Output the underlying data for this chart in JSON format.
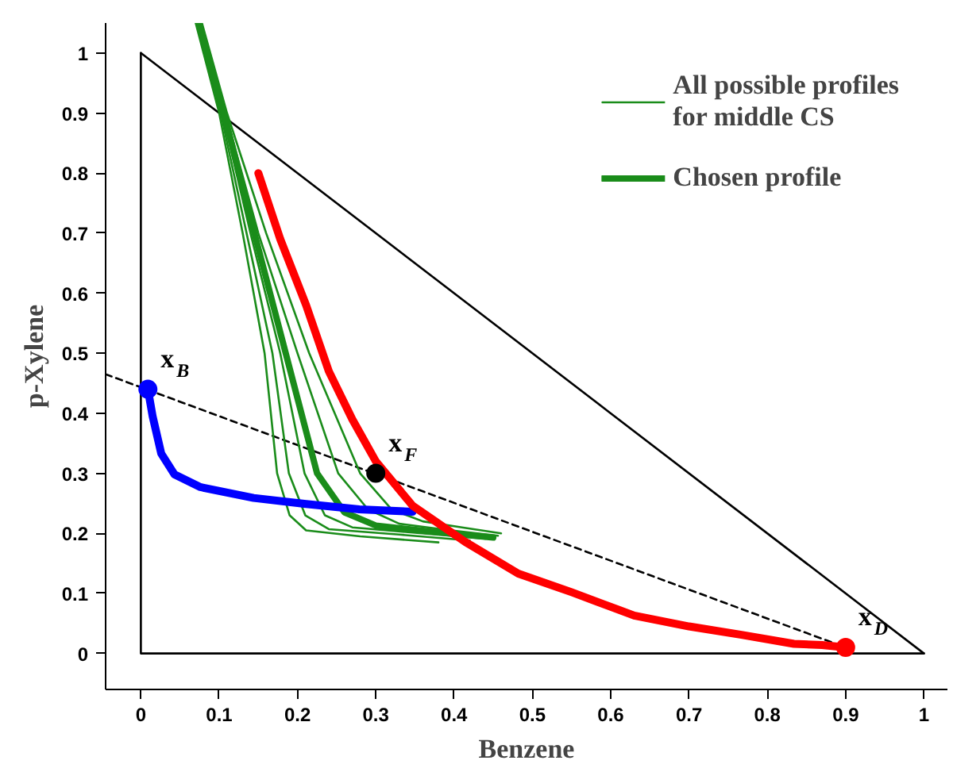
{
  "chart_data": {
    "type": "line",
    "xlabel": "Benzene",
    "ylabel": "p-Xylene",
    "xlim": [
      -0.045,
      1.03
    ],
    "ylim": [
      -0.06,
      1.05
    ],
    "xticks": [
      0,
      0.1,
      0.2,
      0.3,
      0.4,
      0.5,
      0.6,
      0.7,
      0.8,
      0.9,
      1
    ],
    "yticks": [
      0,
      0.1,
      0.2,
      0.3,
      0.4,
      0.5,
      0.6,
      0.7,
      0.8,
      0.9,
      1
    ],
    "grid": false,
    "legend": "top right",
    "series": [
      {
        "color": "#000000",
        "x": [
          0,
          0,
          1
        ],
        "values": [
          1,
          0,
          0
        ]
      },
      {
        "color": "#000000",
        "x": [
          0,
          1
        ],
        "values": [
          1,
          0
        ]
      },
      {
        "color": "#000000",
        "line_style": "dashed",
        "x": [
          -0.045,
          0.9
        ],
        "values": [
          0.465,
          0.01
        ]
      },
      {
        "name": "All possible profiles\nfor middle CS",
        "color": "#1a8c1a",
        "x": [
          0.07,
          0.1,
          0.13,
          0.158,
          0.174,
          0.19,
          0.211,
          0.28,
          0.38
        ],
        "values": [
          1.05,
          0.9,
          0.7,
          0.5,
          0.3,
          0.23,
          0.205,
          0.195,
          0.185
        ]
      },
      {
        "color": "#1a8c1a",
        "x": [
          0.072,
          0.102,
          0.135,
          0.168,
          0.189,
          0.21,
          0.24,
          0.33,
          0.42
        ],
        "values": [
          1.05,
          0.9,
          0.7,
          0.5,
          0.3,
          0.23,
          0.207,
          0.198,
          0.188
        ]
      },
      {
        "color": "#1a8c1a",
        "x": [
          0.073,
          0.104,
          0.14,
          0.178,
          0.209,
          0.235,
          0.27,
          0.35,
          0.44
        ],
        "values": [
          1.05,
          0.9,
          0.7,
          0.5,
          0.3,
          0.23,
          0.21,
          0.201,
          0.191
        ]
      },
      {
        "color": "#1a8c1a",
        "x": [
          0.076,
          0.108,
          0.15,
          0.2,
          0.252,
          0.29,
          0.33,
          0.39,
          0.456
        ],
        "values": [
          1.05,
          0.9,
          0.7,
          0.5,
          0.3,
          0.24,
          0.216,
          0.206,
          0.196
        ]
      },
      {
        "color": "#1a8c1a",
        "x": [
          0.078,
          0.11,
          0.16,
          0.215,
          0.28,
          0.32,
          0.36,
          0.41,
          0.46
        ],
        "values": [
          1.05,
          0.9,
          0.7,
          0.5,
          0.3,
          0.24,
          0.22,
          0.21,
          0.2
        ]
      },
      {
        "name": "Chosen profile",
        "color": "#1a8c1a",
        "x": [
          0.074,
          0.106,
          0.145,
          0.185,
          0.225,
          0.26,
          0.3,
          0.37,
          0.45
        ],
        "values": [
          1.05,
          0.9,
          0.7,
          0.5,
          0.3,
          0.235,
          0.213,
          0.203,
          0.193
        ]
      },
      {
        "color": "#0000ff",
        "x": [
          0.009,
          0.015,
          0.026,
          0.043,
          0.076,
          0.144,
          0.211,
          0.279,
          0.347
        ],
        "values": [
          0.44,
          0.395,
          0.333,
          0.298,
          0.277,
          0.259,
          0.249,
          0.24,
          0.236
        ]
      },
      {
        "color": "#ff0000",
        "x": [
          0.15,
          0.178,
          0.211,
          0.24,
          0.27,
          0.3,
          0.347,
          0.414,
          0.482,
          0.55,
          0.63,
          0.7,
          0.767,
          0.834,
          0.87,
          0.9
        ],
        "values": [
          0.8,
          0.69,
          0.58,
          0.47,
          0.39,
          0.32,
          0.246,
          0.186,
          0.133,
          0.102,
          0.063,
          0.045,
          0.031,
          0.016,
          0.014,
          0.01
        ]
      },
      {
        "type": "scatter",
        "marker": "circle",
        "x": [
          0.009,
          0.3,
          0.9
        ],
        "values": [
          0.44,
          0.3,
          0.01
        ],
        "colors": [
          "#0000ff",
          "#000000",
          "#ff0000"
        ]
      }
    ],
    "annotations": [
      {
        "text": "x$_{B}$",
        "x": 0.009,
        "y": 0.44
      },
      {
        "text": "x$_{F}$",
        "x": 0.3,
        "y": 0.3
      },
      {
        "text": "x$_{D}$",
        "x": 0.9,
        "y": 0.01
      }
    ]
  }
}
